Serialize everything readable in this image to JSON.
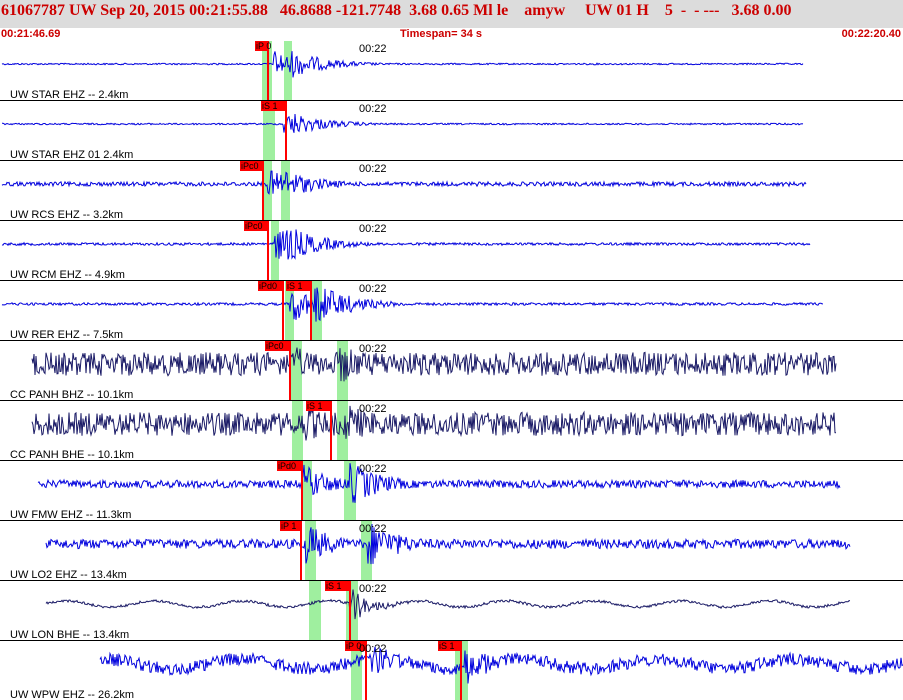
{
  "header": {
    "title": "61067787 UW Sep 20, 2015 00:21:55.88   46.8688 -121.7748  3.68 0.65 Ml le    amyw     UW 01 H    5  -  - ---   3.68 0.00"
  },
  "subheader": {
    "start_time": "00:21:46.69",
    "timespan": "Timespan=  34 s",
    "end_time": "00:22:20.40"
  },
  "colors": {
    "trace_blue": "#0000dd",
    "trace_navy": "#1a1a66",
    "pick_red": "#ff0000",
    "window_green": "#9fef9f",
    "header_red": "#cc0000"
  },
  "tracks": [
    {
      "label": "UW STAR EHZ -- 2.4km",
      "time_mark": "00:22",
      "color": "#0000dd",
      "picks": [
        "iP 0"
      ]
    },
    {
      "label": "UW STAR EHZ 01 2.4km",
      "time_mark": "00:22",
      "color": "#0000dd",
      "picks": [
        "iS 1"
      ]
    },
    {
      "label": "UW RCS EHZ -- 3.2km",
      "time_mark": "00:22",
      "color": "#0000dd",
      "picks": [
        "iPc0"
      ]
    },
    {
      "label": "UW RCM EHZ -- 4.9km",
      "time_mark": "00:22",
      "color": "#0000dd",
      "picks": [
        "iPc0"
      ]
    },
    {
      "label": "UW RER EHZ -- 7.5km",
      "time_mark": "00:22",
      "color": "#0000dd",
      "picks": [
        "iPd0",
        "iS 1"
      ]
    },
    {
      "label": "CC PANH BHZ -- 10.1km",
      "time_mark": "00:22",
      "color": "#1a1a66",
      "picks": [
        "iPc0"
      ]
    },
    {
      "label": "CC PANH BHE -- 10.1km",
      "time_mark": "00:22",
      "color": "#1a1a66",
      "picks": [
        "iS 1"
      ]
    },
    {
      "label": "UW FMW EHZ -- 11.3km",
      "time_mark": "00:22",
      "color": "#0000dd",
      "picks": [
        "iPd0"
      ]
    },
    {
      "label": "UW LO2 EHZ -- 13.4km",
      "time_mark": "00:22",
      "color": "#0000dd",
      "picks": [
        "iP 1"
      ]
    },
    {
      "label": "UW LON BHE -- 13.4km",
      "time_mark": "00:22",
      "color": "#1a1a66",
      "picks": [
        "iS 1"
      ]
    },
    {
      "label": "UW WPW EHZ -- 26.2km",
      "time_mark": "00:22",
      "color": "#0000dd",
      "picks": [
        "iP 0",
        "iS 1"
      ]
    }
  ]
}
